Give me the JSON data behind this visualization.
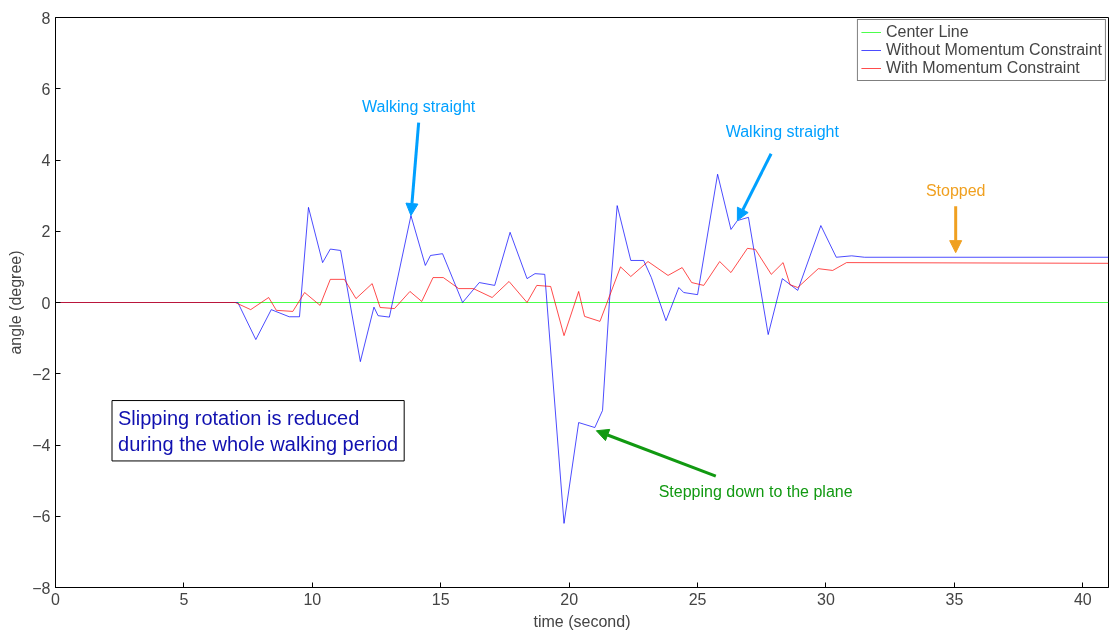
{
  "chart_data": {
    "type": "line",
    "xlabel": "time (second)",
    "ylabel": "angle (degree)",
    "xlim": [
      0,
      41
    ],
    "ylim": [
      -8,
      8
    ],
    "xticks": [
      0,
      5,
      10,
      15,
      20,
      25,
      30,
      35,
      40
    ],
    "yticks": [
      -8,
      -6,
      -4,
      -2,
      0,
      2,
      4,
      6,
      8
    ],
    "grid": false,
    "legend": "top right",
    "series": [
      {
        "name": "Center Line",
        "color": "#00ff00",
        "x": [
          0,
          41
        ],
        "values": [
          0,
          0
        ]
      },
      {
        "name": "Without Momentum Constraint",
        "color": "#0000ff",
        "x": [
          0,
          7.1,
          7.8,
          8.4,
          9.1,
          9.5,
          9.85,
          10.4,
          10.7,
          11.1,
          11.87,
          12.4,
          12.56,
          13.0,
          13.84,
          14.4,
          14.6,
          15.07,
          15.85,
          16.5,
          17.1,
          17.7,
          18.36,
          18.67,
          19.05,
          19.8,
          20.37,
          21.0,
          21.3,
          21.57,
          21.87,
          22.4,
          22.9,
          23.2,
          23.77,
          24.27,
          24.46,
          25.0,
          25.78,
          26.3,
          26.55,
          26.98,
          27.75,
          28.3,
          28.9,
          29.8,
          30.4,
          31.0,
          31.5,
          41
        ],
        "values": [
          0,
          0,
          -1.04,
          -0.2,
          -0.4,
          -0.4,
          2.67,
          1.12,
          1.5,
          1.46,
          -1.66,
          -0.13,
          -0.37,
          -0.41,
          2.44,
          1.04,
          1.32,
          1.37,
          0.0,
          0.56,
          0.48,
          1.97,
          0.67,
          0.81,
          0.79,
          -6.2,
          -3.37,
          -3.51,
          -3.03,
          0.05,
          2.72,
          1.18,
          1.18,
          0.7,
          -0.51,
          0.42,
          0.28,
          0.22,
          3.6,
          2.05,
          2.3,
          2.39,
          -0.9,
          0.67,
          0.34,
          2.16,
          1.27,
          1.31,
          1.27,
          1.27
        ]
      },
      {
        "name": "With Momentum Constraint",
        "color": "#ff0000",
        "x": [
          0,
          7.0,
          7.6,
          8.3,
          8.6,
          9.24,
          9.7,
          10.3,
          10.7,
          11.25,
          11.7,
          12.33,
          12.64,
          13.2,
          13.8,
          14.26,
          14.7,
          15.1,
          15.7,
          16.27,
          17.0,
          17.66,
          18.36,
          18.74,
          19.28,
          19.8,
          20.37,
          20.6,
          21.2,
          22.0,
          22.4,
          23.07,
          23.85,
          24.4,
          24.77,
          25.24,
          25.86,
          26.3,
          26.94,
          27.25,
          27.87,
          28.33,
          28.6,
          28.9,
          29.7,
          30.26,
          30.8,
          41
        ],
        "values": [
          0,
          0,
          -0.2,
          0.14,
          -0.22,
          -0.25,
          0.28,
          -0.08,
          0.65,
          0.65,
          0.11,
          0.53,
          -0.14,
          -0.17,
          0.31,
          0.03,
          0.7,
          0.7,
          0.39,
          0.39,
          0.14,
          0.59,
          0.0,
          0.48,
          0.45,
          -0.93,
          0.31,
          -0.39,
          -0.53,
          1.0,
          0.73,
          1.15,
          0.76,
          0.98,
          0.56,
          0.48,
          1.15,
          0.84,
          1.52,
          1.49,
          0.79,
          1.12,
          0.5,
          0.42,
          0.95,
          0.9,
          1.12,
          1.1
        ]
      }
    ],
    "annotations": [
      {
        "text": "Walking straight",
        "x": 13.84,
        "y": 2.44
      },
      {
        "text": "Walking straight",
        "x": 26.55,
        "y": 2.3
      },
      {
        "text": "Stopped",
        "x": 35.05,
        "y": 1.4
      },
      {
        "text": "Stepping down to the plane",
        "x": 21.06,
        "y": -3.6
      },
      "Slipping rotation is reduced\nduring the whole walking period"
    ]
  }
}
